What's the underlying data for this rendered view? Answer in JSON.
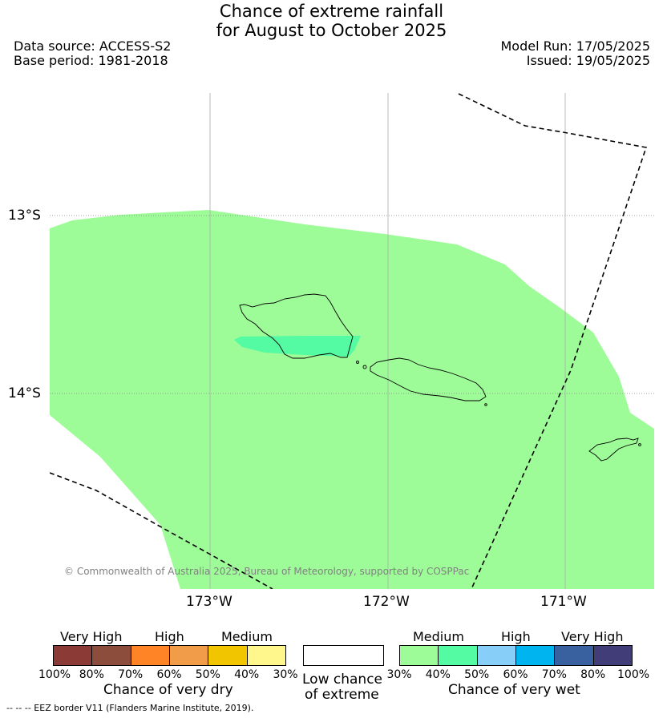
{
  "header": {
    "title_line1": "Chance of extreme rainfall",
    "title_line2": "for August to October 2025",
    "data_source": "Data source: ACCESS-S2",
    "base_period": "Base period: 1981-2018",
    "model_run": "Model Run: 17/05/2025",
    "issued": "Issued: 19/05/2025"
  },
  "map": {
    "lat_labels": [
      "13°S",
      "14°S"
    ],
    "lon_labels": [
      "173°W",
      "172°W",
      "171°W"
    ],
    "copyright": "© Commonwealth of Australia 2025, Bureau of Meteorology, supported by COSPPac",
    "colors": {
      "medium_wet": "#9efc98",
      "high_wet_40_50": "#55fba3",
      "border": "#000000",
      "grid": "#aaaaaa"
    }
  },
  "legend": {
    "dry": {
      "headers": [
        "Very High",
        "High",
        "Medium"
      ],
      "ticks": [
        "100%",
        "80%",
        "70%",
        "60%",
        "50%",
        "40%",
        "30%"
      ],
      "title": "Chance of very dry",
      "colors": [
        "#8b3a35",
        "#8d4d3d",
        "#ff8426",
        "#f09c48",
        "#f1c500",
        "#fff78c"
      ]
    },
    "low": {
      "title_line1": "Low chance",
      "title_line2": "of extreme",
      "color": "#ffffff"
    },
    "wet": {
      "headers": [
        "Medium",
        "High",
        "Very High"
      ],
      "ticks": [
        "30%",
        "40%",
        "50%",
        "60%",
        "70%",
        "80%",
        "100%"
      ],
      "title": "Chance of very wet",
      "colors": [
        "#9efc98",
        "#55fba3",
        "#87cef9",
        "#00b4f0",
        "#3a619f",
        "#403d78"
      ]
    }
  },
  "footer": {
    "eez_note": "--  --  -- EEZ border V11 (Flanders Marine Institute, 2019)."
  }
}
